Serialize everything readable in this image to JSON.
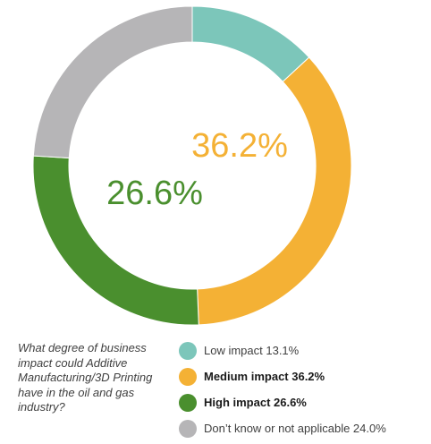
{
  "chart_data": {
    "type": "pie",
    "style": "donut",
    "start": "top",
    "direction": "clockwise",
    "slices": [
      {
        "label": "Low impact",
        "value": 13.1,
        "color": "#7cc6ba",
        "legend_text": "Low impact 13.1%",
        "bold": false
      },
      {
        "label": "Medium impact",
        "value": 36.2,
        "color": "#f4b135",
        "legend_text": "Medium impact 36.2%",
        "bold": true
      },
      {
        "label": "High impact",
        "value": 26.6,
        "color": "#4a8f2e",
        "legend_text": "High impact 26.6%",
        "bold": true
      },
      {
        "label": "Don’t know or not applicable",
        "value": 24.0,
        "color": "#b6b5b7",
        "legend_text": "Don’t know or not applicable 24.0%",
        "bold": false
      }
    ],
    "callouts": [
      {
        "text": "36.2%",
        "slice": "Medium impact",
        "color": "#f4b135"
      },
      {
        "text": "26.6%",
        "slice": "High impact",
        "color": "#4a8f2e"
      }
    ],
    "question": "What degree of business impact could Additive Manufacturing/3D Printing have in the oil and gas industry?",
    "legend_position": "bottom-right"
  }
}
